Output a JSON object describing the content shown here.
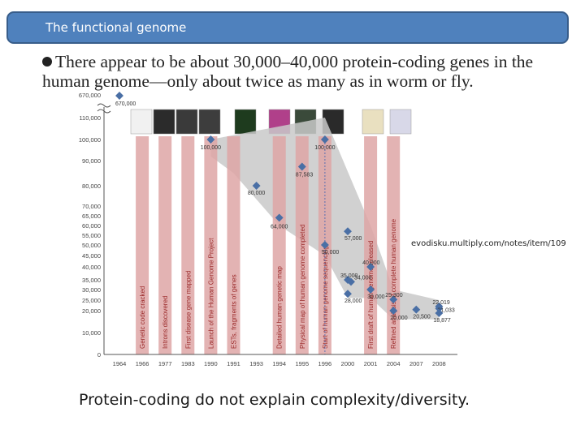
{
  "slide": {
    "title": "The functional genome",
    "headline": "There appear to be about 30,000–40,000 protein-coding genes in the human genome—only about twice as many as in worm or fly.",
    "source": "evodisku.multiply.com/notes/item/109",
    "caption": "Protein-coding do not explain complexity/diversity."
  },
  "chart_data": {
    "type": "scatter",
    "x": [
      "1964",
      "1966",
      "1977",
      "1983",
      "1990",
      "1991",
      "1993",
      "1994",
      "1995",
      "1996",
      "2000",
      "2001",
      "2004",
      "2007",
      "2008"
    ],
    "y_ticks": [
      "0",
      "10,000",
      "20,000",
      "25,000",
      "30,000",
      "35,000",
      "40,000",
      "45,000",
      "50,000",
      "55,000",
      "60,000",
      "65,000",
      "70,000",
      "80,000",
      "90,000",
      "100,000",
      "110,000"
    ],
    "y_top_label": "670,000",
    "events": [
      {
        "x": "1966",
        "label": "Genetic code cracked"
      },
      {
        "x": "1977",
        "label": "Introns discovered"
      },
      {
        "x": "1983",
        "label": "First disease gene mapped"
      },
      {
        "x": "1990",
        "label": "Launch of the Human Genome Project"
      },
      {
        "x": "1991",
        "label": "ESTs, fragments of genes"
      },
      {
        "x": "1994",
        "label": "Detailed human genetic map"
      },
      {
        "x": "1995",
        "label": "Physical map of human genome completed"
      },
      {
        "x": "1996",
        "label": "Start of human genome sequencing"
      },
      {
        "x": "2001",
        "label": "First draft of human genome released"
      },
      {
        "x": "2004",
        "label": "Refined analysis of complete human genome"
      }
    ],
    "estimates": [
      {
        "x": "1964",
        "y": 670000,
        "label": "670,000"
      },
      {
        "x": "1990",
        "y": 100000,
        "label": "100,000"
      },
      {
        "x": "1993",
        "y": 80000,
        "label": "80,000"
      },
      {
        "x": "1994",
        "y": 64000,
        "label": "64,000"
      },
      {
        "x": "1995",
        "y": 87583,
        "label": "87,583"
      },
      {
        "x": "1996",
        "y": 100000,
        "label": "100,000"
      },
      {
        "x": "1996",
        "y": 50000,
        "label": "50,000"
      },
      {
        "x": "2000",
        "y": 57000,
        "label": "57,000"
      },
      {
        "x": "2000",
        "y": 35000,
        "label": "35,000"
      },
      {
        "x": "2000",
        "y": 34000,
        "label": "34,000"
      },
      {
        "x": "2000",
        "y": 28000,
        "label": "28,000"
      },
      {
        "x": "2001",
        "y": 40000,
        "label": "40,000"
      },
      {
        "x": "2001",
        "y": 30000,
        "label": "30,000"
      },
      {
        "x": "2004",
        "y": 25300,
        "label": "25,300"
      },
      {
        "x": "2004",
        "y": 20000,
        "label": "20,000"
      },
      {
        "x": "2007",
        "y": 20500,
        "label": "20,500"
      },
      {
        "x": "2008",
        "y": 22019,
        "label": "22,019"
      },
      {
        "x": "2008",
        "y": 21033,
        "label": "21,033"
      },
      {
        "x": "2008",
        "y": 18877,
        "label": "18,877"
      }
    ],
    "title": "",
    "xlabel": "",
    "ylabel": "",
    "colors": {
      "event_band": "#dea6a6",
      "event_text": "#9b2a2a",
      "range_band": "#c9c9c9",
      "point": "#4a6fa5",
      "axis": "#555555"
    }
  }
}
